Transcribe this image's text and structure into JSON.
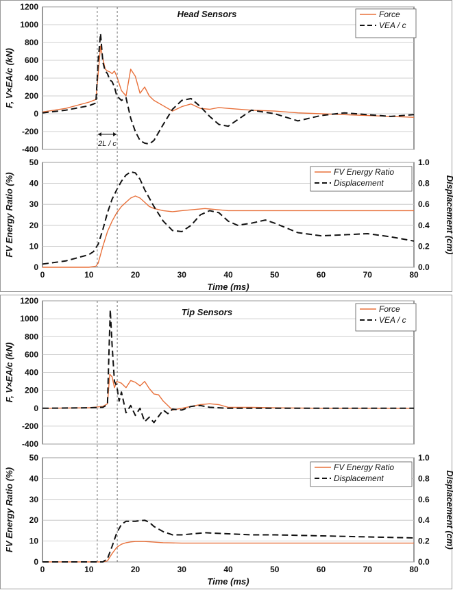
{
  "colors": {
    "force": "#E8703A",
    "vea": "#111111",
    "grid": "#bfbfbf"
  },
  "chart_data": [
    {
      "type": "line",
      "title": "Head Sensors",
      "xlabel": "",
      "ylabel": "F, V×EA/c (kN)",
      "xlim": [
        0,
        80
      ],
      "ylim": [
        -400,
        1200
      ],
      "yticks": [
        -400,
        -200,
        0,
        200,
        400,
        600,
        800,
        1000,
        1200
      ],
      "grid": "horizontal",
      "legend": "top-right",
      "annotation": "2L / c",
      "series": [
        {
          "name": "Force",
          "color": "#E8703A",
          "dash": "solid",
          "x": [
            0,
            5,
            10,
            11.5,
            12,
            12.5,
            13,
            13.5,
            14,
            14.5,
            15,
            15.5,
            16,
            17,
            18,
            19,
            20,
            21,
            22,
            23,
            24,
            26,
            28,
            30,
            32,
            34,
            36,
            38,
            40,
            45,
            50,
            55,
            60,
            65,
            70,
            75,
            80
          ],
          "y": [
            20,
            60,
            130,
            160,
            450,
            760,
            620,
            500,
            480,
            470,
            450,
            480,
            420,
            260,
            200,
            500,
            420,
            230,
            300,
            200,
            150,
            90,
            30,
            80,
            110,
            60,
            50,
            70,
            60,
            40,
            30,
            10,
            0,
            -10,
            -20,
            -30,
            -40
          ]
        },
        {
          "name": "VEA / c",
          "color": "#111111",
          "dash": "dashed",
          "x": [
            0,
            5,
            10,
            11.5,
            12,
            12.5,
            13,
            13.5,
            14,
            14.5,
            15,
            15.5,
            16,
            17,
            18,
            19,
            20,
            21,
            22,
            23,
            24,
            26,
            28,
            30,
            32,
            34,
            36,
            38,
            40,
            45,
            50,
            55,
            60,
            65,
            70,
            75,
            80
          ],
          "y": [
            10,
            40,
            90,
            120,
            600,
            900,
            580,
            480,
            450,
            380,
            360,
            300,
            200,
            150,
            180,
            -50,
            -200,
            -300,
            -330,
            -340,
            -300,
            -120,
            50,
            150,
            170,
            80,
            -30,
            -120,
            -140,
            40,
            0,
            -80,
            -20,
            10,
            -10,
            -30,
            -10
          ]
        }
      ]
    },
    {
      "type": "line",
      "title": "",
      "xlabel": "Time (ms)",
      "ylabel": "FV Energy Ratio (%)",
      "ylabel2": "Displacement (cm)",
      "xlim": [
        0,
        80
      ],
      "xticks": [
        0,
        10,
        20,
        30,
        40,
        50,
        60,
        70,
        80
      ],
      "ylim": [
        0,
        50
      ],
      "yticks": [
        0,
        10,
        20,
        30,
        40,
        50
      ],
      "ylim2": [
        0,
        1.0
      ],
      "yticks2": [
        "0.0",
        "0.2",
        "0.4",
        "0.6",
        "0.8",
        "1.0"
      ],
      "grid": "horizontal",
      "legend": "top-right",
      "series": [
        {
          "name": "FV Energy Ratio",
          "color": "#E8703A",
          "dash": "solid",
          "axis": "left",
          "x": [
            0,
            10,
            11.5,
            12,
            13,
            14,
            15,
            16,
            17,
            18,
            19,
            20,
            21,
            22,
            23,
            24,
            26,
            28,
            30,
            35,
            40,
            50,
            60,
            70,
            80
          ],
          "y": [
            0,
            0,
            0.5,
            2,
            10,
            17,
            22,
            26,
            29,
            31,
            33,
            34,
            33,
            31,
            29,
            28,
            27,
            26.5,
            27,
            28,
            27,
            27,
            27,
            27,
            27
          ]
        },
        {
          "name": "Displacement",
          "color": "#111111",
          "dash": "dashed",
          "axis": "right",
          "x": [
            0,
            5,
            10,
            11,
            12,
            13,
            14,
            15,
            16,
            17,
            18,
            19,
            20,
            21,
            22,
            24,
            26,
            28,
            30,
            32,
            34,
            36,
            38,
            40,
            42,
            45,
            48,
            50,
            55,
            60,
            65,
            70,
            75,
            80
          ],
          "y": [
            0.03,
            0.06,
            0.12,
            0.15,
            0.22,
            0.36,
            0.52,
            0.65,
            0.74,
            0.82,
            0.88,
            0.91,
            0.9,
            0.84,
            0.74,
            0.58,
            0.44,
            0.35,
            0.34,
            0.4,
            0.5,
            0.54,
            0.52,
            0.44,
            0.4,
            0.42,
            0.45,
            0.42,
            0.33,
            0.3,
            0.31,
            0.32,
            0.29,
            0.25
          ]
        }
      ]
    },
    {
      "type": "line",
      "title": "Tip Sensors",
      "xlabel": "",
      "ylabel": "F, V×EA/c (kN)",
      "xlim": [
        0,
        80
      ],
      "ylim": [
        -400,
        1200
      ],
      "yticks": [
        -400,
        -200,
        0,
        200,
        400,
        600,
        800,
        1000,
        1200
      ],
      "grid": "horizontal",
      "legend": "top-right",
      "series": [
        {
          "name": "Force",
          "color": "#E8703A",
          "dash": "solid",
          "x": [
            0,
            10,
            13,
            14,
            14.5,
            15,
            15.5,
            16,
            17,
            18,
            19,
            20,
            21,
            22,
            23,
            24,
            25,
            26,
            28,
            30,
            32,
            34,
            36,
            38,
            40,
            45,
            50,
            60,
            70,
            80
          ],
          "y": [
            0,
            5,
            20,
            50,
            380,
            350,
            230,
            300,
            280,
            230,
            310,
            290,
            250,
            300,
            220,
            160,
            150,
            80,
            -20,
            0,
            20,
            40,
            50,
            40,
            10,
            10,
            5,
            0,
            0,
            0
          ]
        },
        {
          "name": "VEA / c",
          "color": "#111111",
          "dash": "dashed",
          "x": [
            0,
            10,
            13,
            14,
            14.3,
            14.6,
            15,
            15.5,
            16,
            16.5,
            17,
            18,
            19,
            20,
            21,
            22,
            23,
            24,
            25,
            26,
            27,
            28,
            30,
            32,
            34,
            36,
            40,
            50,
            60,
            70,
            80
          ],
          "y": [
            0,
            5,
            10,
            40,
            600,
            1100,
            700,
            300,
            250,
            80,
            180,
            -50,
            30,
            -80,
            0,
            -150,
            -100,
            -160,
            -90,
            -20,
            -60,
            -10,
            -20,
            20,
            30,
            10,
            0,
            0,
            0,
            0,
            0
          ]
        }
      ]
    },
    {
      "type": "line",
      "title": "",
      "xlabel": "Time (ms)",
      "ylabel": "FV Energy Ratio (%)",
      "ylabel2": "Displacement (cm)",
      "xlim": [
        0,
        80
      ],
      "xticks": [
        0,
        10,
        20,
        30,
        40,
        50,
        60,
        70,
        80
      ],
      "ylim": [
        0,
        50
      ],
      "yticks": [
        0,
        10,
        20,
        30,
        40,
        50
      ],
      "ylim2": [
        0,
        1.0
      ],
      "yticks2": [
        "0.0",
        "0.2",
        "0.4",
        "0.6",
        "0.8",
        "1.0"
      ],
      "grid": "horizontal",
      "legend": "top-right",
      "series": [
        {
          "name": "FV Energy Ratio",
          "color": "#E8703A",
          "dash": "solid",
          "axis": "left",
          "x": [
            0,
            13,
            14,
            15,
            16,
            17,
            18,
            19,
            20,
            22,
            24,
            26,
            30,
            40,
            50,
            60,
            70,
            80
          ],
          "y": [
            0,
            0,
            0.5,
            4,
            7,
            8.5,
            9.2,
            9.6,
            9.8,
            9.8,
            9.5,
            9.2,
            9,
            9,
            9,
            9,
            9,
            9
          ]
        },
        {
          "name": "Displacement",
          "color": "#111111",
          "dash": "dashed",
          "axis": "right",
          "x": [
            0,
            13,
            14,
            15,
            16,
            17,
            18,
            20,
            22,
            23,
            24,
            26,
            28,
            30,
            35,
            40,
            45,
            50,
            60,
            70,
            80
          ],
          "y": [
            0,
            0,
            0.03,
            0.15,
            0.28,
            0.36,
            0.39,
            0.39,
            0.4,
            0.38,
            0.34,
            0.29,
            0.26,
            0.26,
            0.28,
            0.27,
            0.26,
            0.26,
            0.25,
            0.24,
            0.23
          ]
        }
      ]
    }
  ]
}
